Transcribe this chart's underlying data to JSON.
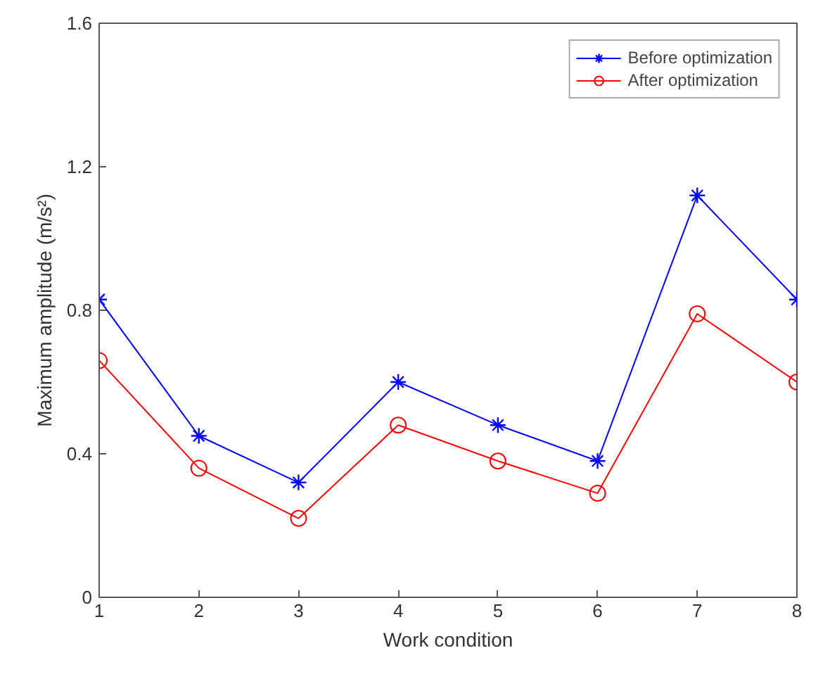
{
  "chart_data": {
    "type": "line",
    "xlabel": "Work condition",
    "ylabel": "Maximum amplitude (m/s²)",
    "x": [
      1,
      2,
      3,
      4,
      5,
      6,
      7,
      8
    ],
    "xlim": [
      1,
      8
    ],
    "xticks": [
      1,
      2,
      3,
      4,
      5,
      6,
      7,
      8
    ],
    "ylim": [
      0,
      1.6
    ],
    "yticks": [
      0,
      0.4,
      0.8,
      1.2,
      1.6
    ],
    "grid": false,
    "legend": "top right",
    "line_style": "solid",
    "series": [
      {
        "name": "Before optimization",
        "color": "#0000ff",
        "marker": "cross",
        "values": [
          0.83,
          0.45,
          0.32,
          0.6,
          0.48,
          0.38,
          1.12,
          0.83
        ]
      },
      {
        "name": "After optimization",
        "color": "#ff0000",
        "marker": "circle",
        "values": [
          0.66,
          0.36,
          0.22,
          0.48,
          0.38,
          0.29,
          0.79,
          0.6
        ]
      }
    ]
  }
}
